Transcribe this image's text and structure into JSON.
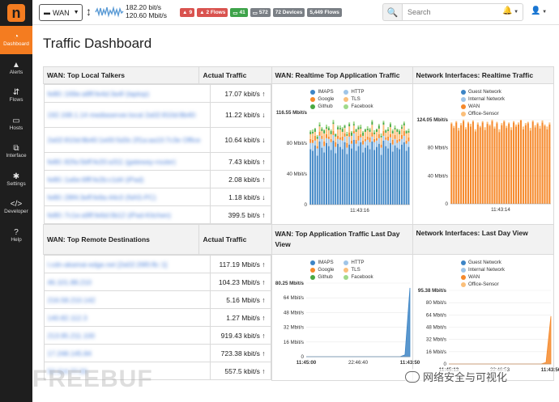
{
  "sidebar": {
    "logo": "n",
    "items": [
      {
        "label": "Dashboard",
        "icon": "dashboard-gauge-icon",
        "glyph": "◔"
      },
      {
        "label": "Alerts",
        "icon": "warning-icon",
        "glyph": "▲"
      },
      {
        "label": "Flows",
        "icon": "flows-icon",
        "glyph": "⇵"
      },
      {
        "label": "Hosts",
        "icon": "laptop-icon",
        "glyph": "▭"
      },
      {
        "label": "Interface",
        "icon": "ethernet-icon",
        "glyph": "⧉"
      },
      {
        "label": "Settings",
        "icon": "gear-icon",
        "glyph": "✱"
      },
      {
        "label": "Developer",
        "icon": "code-icon",
        "glyph": "</>"
      },
      {
        "label": "Help",
        "icon": "help-icon",
        "glyph": "?"
      }
    ]
  },
  "topbar": {
    "interface": "WAN",
    "rate_up": "182.20 bit/s",
    "rate_down": "120.60 Mbit/s",
    "badges": [
      {
        "text": "9",
        "color": "#d9534f",
        "icon": "warning-icon"
      },
      {
        "text": "2 Flows",
        "color": "#d9534f",
        "icon": "warning-icon"
      },
      {
        "text": "41",
        "color": "#3ea34a",
        "icon": "laptop-icon"
      },
      {
        "text": "572",
        "color": "#7a7f85",
        "icon": "laptop-icon"
      },
      {
        "text": "72 Devices",
        "color": "#7a7f85",
        "icon": ""
      },
      {
        "text": "5,449 Flows",
        "color": "#7a7f85",
        "icon": ""
      }
    ],
    "search_placeholder": "Search"
  },
  "page": {
    "title": "Traffic Dashboard",
    "top_talkers": {
      "header": "WAN: Top Local Talkers",
      "col_traffic": "Actual Traffic",
      "rows": [
        {
          "name": "fe80::169e:a8ff:fe4d:3a4f (laptop)",
          "value": "17.07 kbit/s",
          "trend": "up"
        },
        {
          "name": "192.168.1.14 mediaserver.local 2a02:810d:8b40:",
          "value": "11.22 kbit/s",
          "trend": "down"
        },
        {
          "name": "2a02:810d:8b40:1e00:5d3c:2f1a:aa10:7c3e Office",
          "value": "10.64 kbit/s",
          "trend": "down"
        },
        {
          "name": "fe80::82fa:5bff:fe20:a311 (gateway-router)",
          "value": "7.43 kbit/s",
          "trend": "up"
        },
        {
          "name": "fe80::1a6e:6fff:fe2b:c1d4 (iPad)",
          "value": "2.08 kbit/s",
          "trend": "up"
        },
        {
          "name": "fe80::28f4:3eff:fe9a:44c0 (NAS-PC)",
          "value": "1.18 kbit/s",
          "trend": "down"
        },
        {
          "name": "fe80::7c1e:a9ff:fe6d:0b12 (iPad-Kitchen)",
          "value": "399.5 bit/s",
          "trend": "up"
        }
      ]
    },
    "remote_dest": {
      "header": "WAN: Top Remote Destinations",
      "col_traffic": "Actual Traffic",
      "rows": [
        {
          "name": "l.cdn-akamai-edge.net [2a02:26f0:fb::1]",
          "value": "117.19 Mbit/s",
          "trend": "up"
        },
        {
          "name": "46.101.88.210",
          "value": "104.23 Mbit/s",
          "trend": "up"
        },
        {
          "name": "216.58.210.142",
          "value": "5.16 Mbit/s",
          "trend": "up"
        },
        {
          "name": "140.82.112.3",
          "value": "1.27 Mbit/s",
          "trend": "up"
        },
        {
          "name": "213.95.211.100",
          "value": "919.43 kbit/s",
          "trend": "up"
        },
        {
          "name": "17.248.145.84",
          "value": "723.38 kbit/s",
          "trend": "up"
        },
        {
          "name": "52.114.77.33",
          "value": "557.5 kbit/s",
          "trend": "up"
        }
      ]
    },
    "charts": {
      "realtime_app": {
        "header": "WAN: Realtime Top Application Traffic",
        "legend": [
          {
            "name": "IMAPS",
            "color": "#3d85c6"
          },
          {
            "name": "HTTP",
            "color": "#9fc5e8"
          },
          {
            "name": "Google",
            "color": "#f6892b"
          },
          {
            "name": "TLS",
            "color": "#fbbf7a"
          },
          {
            "name": "Github",
            "color": "#49a942"
          },
          {
            "name": "Facebook",
            "color": "#9fd98a"
          }
        ]
      },
      "realtime_iface": {
        "header": "Network Interfaces: Realtime Traffic",
        "legend": [
          {
            "name": "Guest Network",
            "color": "#3d85c6"
          },
          {
            "name": "Internal Network",
            "color": "#9fc5e8"
          },
          {
            "name": "WAN",
            "color": "#f6892b"
          },
          {
            "name": "Office-Sensor",
            "color": "#fbbf7a"
          }
        ]
      },
      "day_app": {
        "header": "WAN: Top Application Traffic Last Day View",
        "legend": [
          {
            "name": "IMAPS",
            "color": "#3d85c6"
          },
          {
            "name": "HTTP",
            "color": "#9fc5e8"
          },
          {
            "name": "Google",
            "color": "#f6892b"
          },
          {
            "name": "TLS",
            "color": "#fbbf7a"
          },
          {
            "name": "Github",
            "color": "#49a942"
          },
          {
            "name": "Facebook",
            "color": "#9fd98a"
          }
        ]
      },
      "day_iface": {
        "header": "Network Interfaces: Last Day View",
        "legend": [
          {
            "name": "Guest Network",
            "color": "#3d85c6"
          },
          {
            "name": "Internal Network",
            "color": "#9fc5e8"
          },
          {
            "name": "WAN",
            "color": "#f6892b"
          },
          {
            "name": "Office-Sensor",
            "color": "#fbbf7a"
          }
        ]
      }
    }
  },
  "chart_data": [
    {
      "type": "bar",
      "title": "WAN: Realtime Top Application Traffic",
      "ylim": [
        0,
        116.55
      ],
      "yticks": [
        "0",
        "40 Mbit/s",
        "80 Mbit/s",
        "116.55 Mbit/s"
      ],
      "xticks": [
        "11:43:16"
      ],
      "stacked": true,
      "series": [
        {
          "name": "IMAPS",
          "values": [
            70,
            68,
            75,
            62,
            80,
            72,
            66,
            78,
            74,
            69,
            81,
            65,
            77,
            73,
            70,
            79,
            64,
            76,
            71,
            82,
            68,
            74,
            79,
            66,
            72,
            75,
            70,
            80,
            69,
            73,
            77,
            63,
            81,
            74,
            71,
            78,
            67,
            75,
            72,
            70,
            76,
            79,
            68,
            73
          ]
        },
        {
          "name": "HTTP",
          "values": [
            8,
            10,
            6,
            9,
            7,
            11,
            8,
            6,
            9,
            10,
            7,
            8,
            6,
            9,
            11,
            7,
            8,
            10,
            6,
            8,
            9,
            7,
            6,
            10,
            8,
            7,
            9,
            6,
            10,
            8,
            7,
            9,
            6,
            8,
            10,
            7,
            9,
            8,
            6,
            10,
            7,
            8,
            9,
            7
          ]
        },
        {
          "name": "Google",
          "values": [
            5,
            4,
            6,
            3,
            5,
            4,
            6,
            5,
            3,
            4,
            5,
            6,
            4,
            3,
            5,
            4,
            6,
            5,
            4,
            3,
            5,
            6,
            4,
            5,
            3,
            4,
            6,
            5,
            4,
            3,
            5,
            4,
            6,
            3,
            5,
            4,
            6,
            5,
            4,
            3,
            5,
            6,
            4,
            5
          ]
        },
        {
          "name": "TLS",
          "values": [
            6,
            8,
            5,
            9,
            7,
            6,
            10,
            7,
            8,
            6,
            9,
            7,
            8,
            10,
            6,
            7,
            9,
            8,
            6,
            7,
            10,
            8,
            7,
            6,
            9,
            8,
            7,
            10,
            6,
            8,
            7,
            9,
            8,
            6,
            7,
            9,
            8,
            7,
            10,
            6,
            8,
            7,
            9,
            6
          ]
        },
        {
          "name": "Github",
          "values": [
            3,
            2,
            4,
            3,
            2,
            3,
            4,
            2,
            3,
            4,
            2,
            3,
            3,
            2,
            4,
            3,
            2,
            3,
            4,
            2,
            3,
            3,
            2,
            4,
            3,
            2,
            3,
            4,
            2,
            3,
            4,
            2,
            3,
            3,
            2,
            4,
            3,
            2,
            3,
            4,
            2,
            3,
            3,
            2
          ]
        },
        {
          "name": "Facebook",
          "values": [
            2,
            3,
            1,
            2,
            3,
            2,
            1,
            3,
            2,
            2,
            3,
            1,
            2,
            3,
            2,
            1,
            3,
            2,
            2,
            3,
            1,
            2,
            3,
            2,
            1,
            3,
            2,
            2,
            3,
            1,
            2,
            3,
            2,
            1,
            3,
            2,
            2,
            3,
            1,
            2,
            3,
            2,
            1,
            3
          ]
        }
      ]
    },
    {
      "type": "bar",
      "title": "Network Interfaces: Realtime Traffic",
      "ylim": [
        0,
        124.05
      ],
      "yticks": [
        "0",
        "40 Mbit/s",
        "80 Mbit/s",
        "124.05 Mbit/s"
      ],
      "xticks": [
        "11:43:14"
      ],
      "stacked": true,
      "series": [
        {
          "name": "WAN",
          "values": [
            118,
            112,
            120,
            108,
            116,
            122,
            110,
            119,
            114,
            121,
            107,
            117,
            113,
            120,
            109,
            118,
            115,
            122,
            111,
            119,
            106,
            116,
            121,
            112,
            118,
            109,
            120,
            114,
            117,
            123,
            110,
            116,
            119,
            108,
            121,
            113,
            118,
            111,
            120,
            115,
            110,
            117
          ]
        },
        {
          "name": "Office-Sensor",
          "values": [
            2,
            3,
            2,
            4,
            3,
            2,
            3,
            2,
            4,
            2,
            3,
            3,
            2,
            2,
            4,
            3,
            2,
            2,
            3,
            2,
            4,
            3,
            2,
            3,
            2,
            4,
            2,
            3,
            3,
            1,
            4,
            3,
            2,
            4,
            2,
            3,
            2,
            4,
            3,
            2,
            4,
            3
          ]
        }
      ]
    },
    {
      "type": "area",
      "title": "WAN: Top Application Traffic Last Day View",
      "ylim": [
        0,
        80.25
      ],
      "yticks": [
        "0",
        "16 Mbit/s",
        "32 Mbit/s",
        "48 Mbit/s",
        "64 Mbit/s",
        "80.25 Mbit/s"
      ],
      "xticks": [
        "11:45:00",
        "22:46:40",
        "11:43:50"
      ],
      "series": [
        {
          "name": "IMAPS",
          "values": [
            0,
            0,
            0,
            0,
            0,
            0,
            0,
            0,
            0,
            0,
            0,
            0,
            0,
            0,
            0,
            0,
            0,
            0,
            0,
            0,
            2,
            75
          ]
        }
      ]
    },
    {
      "type": "area",
      "title": "Network Interfaces: Last Day View",
      "ylim": [
        0,
        95.38
      ],
      "yticks": [
        "0",
        "16 Mbit/s",
        "32 Mbit/s",
        "48 Mbit/s",
        "64 Mbit/s",
        "80 Mbit/s",
        "95.38 Mbit/s"
      ],
      "xticks": [
        "11:45:13",
        "22:46:53",
        "11:43:56"
      ],
      "series": [
        {
          "name": "WAN",
          "values": [
            0,
            0,
            0,
            0,
            0,
            0,
            0,
            0,
            0,
            0,
            0,
            0,
            0,
            0,
            0,
            0,
            0,
            0,
            0,
            0,
            2,
            62
          ]
        }
      ]
    }
  ],
  "watermarks": {
    "left": "FREEBUF",
    "right": "网络安全与可视化"
  }
}
